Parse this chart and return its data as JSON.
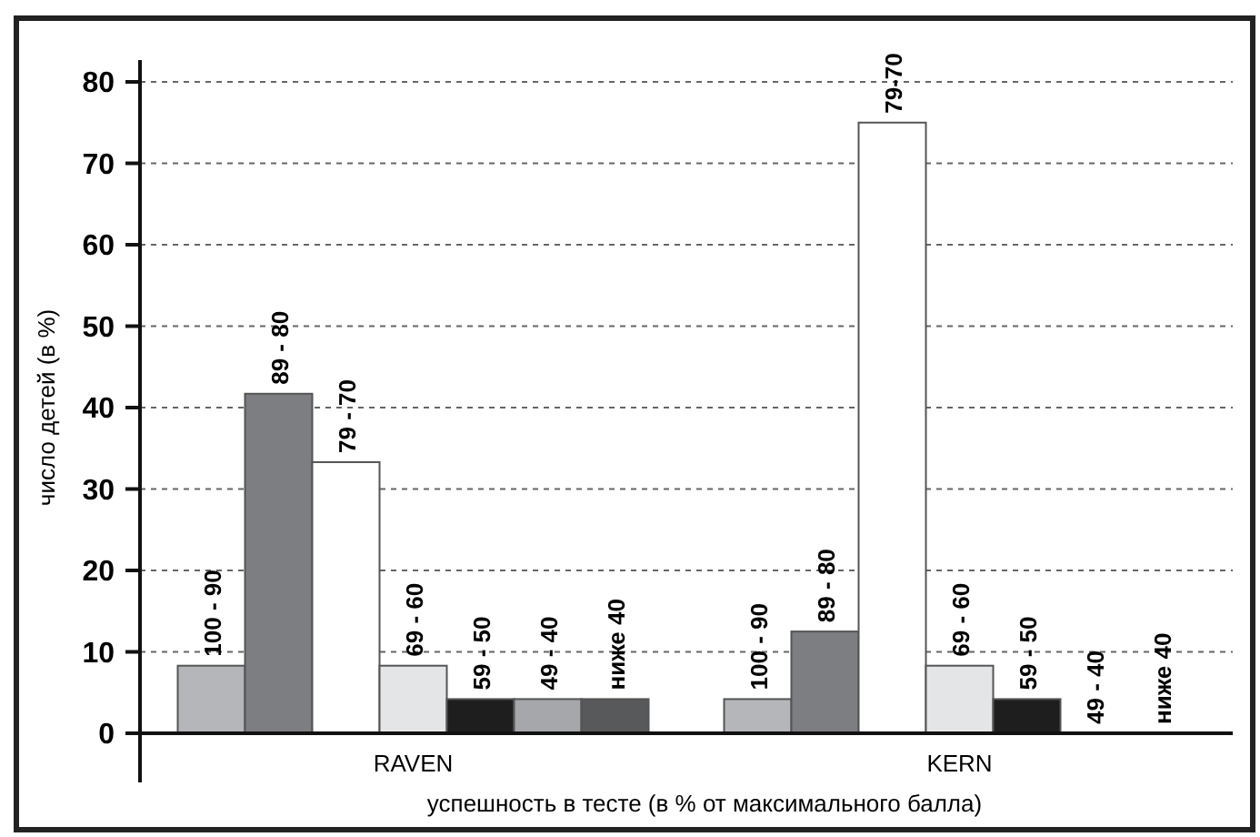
{
  "chart_data": {
    "type": "bar",
    "xlabel": "успешность в тесте (в % от максимального балла)",
    "ylabel": "число детей (в %)",
    "categories": [
      "RAVEN",
      "KERN"
    ],
    "ylim": [
      0,
      80
    ],
    "yticks": [
      0,
      10,
      20,
      30,
      40,
      50,
      60,
      70,
      80
    ],
    "grid": "y",
    "annotations": [
      "79-70"
    ],
    "series": [
      {
        "name": "100 - 90",
        "color": "#b5b6b9",
        "values": [
          8.3,
          4.2
        ]
      },
      {
        "name": "89 - 80",
        "color": "#7d7e82",
        "values": [
          41.7,
          12.5
        ]
      },
      {
        "name": "79 - 70",
        "color": "#ffffff",
        "values": [
          33.3,
          75
        ]
      },
      {
        "name": "69 - 60",
        "color": "#e4e5e6",
        "values": [
          8.3,
          8.3
        ]
      },
      {
        "name": "59 - 50",
        "color": "#1e1e1e",
        "values": [
          4.2,
          4.2
        ]
      },
      {
        "name": "49 - 40",
        "color": "#a6a7aa",
        "values": [
          4.2,
          0
        ]
      },
      {
        "name": "ниже 40",
        "color": "#58595b",
        "values": [
          4.2,
          0
        ]
      }
    ]
  }
}
